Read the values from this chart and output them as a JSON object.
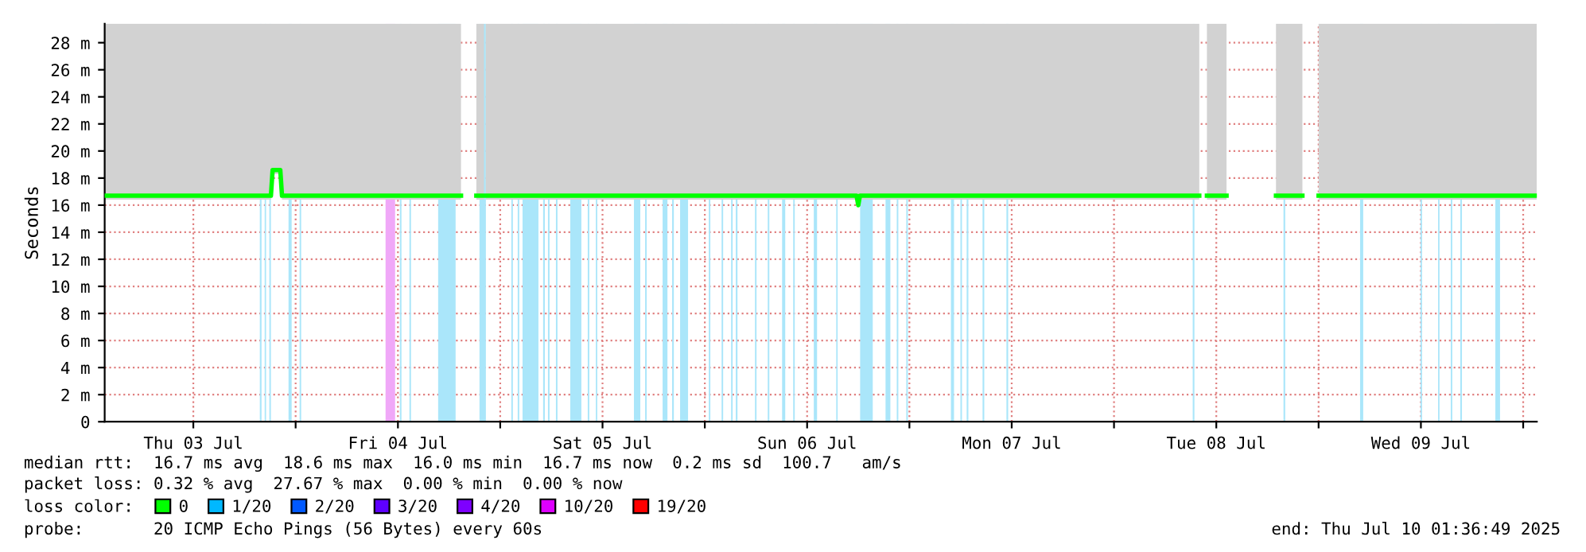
{
  "chart_data": {
    "type": "line",
    "ylabel": "Seconds",
    "xlim": [
      "2025-07-03T01:36",
      "2025-07-10T01:36"
    ],
    "xticks": [
      {
        "value": "2025-07-03T12:00",
        "label": "Thu 03 Jul"
      },
      {
        "value": "2025-07-04T00:00",
        "label": null
      },
      {
        "value": "2025-07-04T12:00",
        "label": "Fri 04 Jul"
      },
      {
        "value": "2025-07-05T00:00",
        "label": null
      },
      {
        "value": "2025-07-05T12:00",
        "label": "Sat 05 Jul"
      },
      {
        "value": "2025-07-06T00:00",
        "label": null
      },
      {
        "value": "2025-07-06T12:00",
        "label": "Sun 06 Jul"
      },
      {
        "value": "2025-07-07T00:00",
        "label": null
      },
      {
        "value": "2025-07-07T12:00",
        "label": "Mon 07 Jul"
      },
      {
        "value": "2025-07-08T00:00",
        "label": null
      },
      {
        "value": "2025-07-08T12:00",
        "label": "Tue 08 Jul"
      },
      {
        "value": "2025-07-09T00:00",
        "label": null
      },
      {
        "value": "2025-07-09T12:00",
        "label": "Wed 09 Jul"
      },
      {
        "value": "2025-07-10T00:00",
        "label": null
      }
    ],
    "ylim": [
      0,
      29.4
    ],
    "yticks": [
      0,
      {
        "value": 2,
        "label": "2 m"
      },
      {
        "value": 4,
        "label": "4 m"
      },
      {
        "value": 6,
        "label": "6 m"
      },
      {
        "value": 8,
        "label": "8 m"
      },
      {
        "value": 10,
        "label": "10 m"
      },
      {
        "value": 12,
        "label": "12 m"
      },
      {
        "value": 14,
        "label": "14 m"
      },
      {
        "value": 16,
        "label": "16 m"
      },
      {
        "value": 18,
        "label": "18 m"
      },
      {
        "value": 20,
        "label": "20 m"
      },
      {
        "value": 22,
        "label": "22 m"
      },
      {
        "value": 24,
        "label": "24 m"
      },
      {
        "value": 26,
        "label": "26 m"
      },
      {
        "value": 28,
        "label": "28 m"
      }
    ],
    "grid": true,
    "legend": "bottom",
    "legend_title": "loss color:",
    "series": [
      {
        "name": "0",
        "color": "#00ff00",
        "x": [
          "2025-07-03T01:36",
          "2025-07-03T21:06",
          "2025-07-03T21:18",
          "2025-07-03T22:12",
          "2025-07-03T22:24",
          "2025-07-04T19:24",
          "2025-07-04T19:30",
          "2025-07-04T21:12",
          "2025-07-04T22:06",
          "2025-07-04T22:10",
          "2025-07-04T22:18",
          "2025-07-06T17:48",
          "2025-07-06T18:00",
          "2025-07-06T18:12",
          "2025-07-08T10:00",
          "2025-07-08T10:24",
          "2025-07-08T10:54",
          "2025-07-08T13:12",
          "2025-07-08T16:00",
          "2025-07-08T19:00",
          "2025-07-08T22:06",
          "2025-07-08T22:24",
          "2025-07-09T00:00",
          "2025-07-10T01:36"
        ],
        "values": [
          16.7,
          16.7,
          18.6,
          18.6,
          16.7,
          16.7,
          null,
          16.7,
          16.7,
          null,
          16.7,
          16.7,
          16.0,
          16.7,
          16.7,
          null,
          16.7,
          16.7,
          null,
          16.7,
          16.7,
          null,
          16.7,
          16.7
        ],
        "lower": [
          16.4,
          16.4,
          18.3,
          18.3,
          16.4,
          16.4,
          null,
          16.4,
          16.4,
          null,
          16.4,
          16.4,
          16.4,
          16.4,
          16.4,
          null,
          16.4,
          16.4,
          null,
          16.4,
          16.4,
          null,
          16.4,
          16.4
        ],
        "upper": [
          29.4,
          29.4,
          29.4,
          29.4,
          29.4,
          29.4,
          null,
          29.4,
          29.4,
          null,
          29.4,
          29.4,
          29.4,
          29.4,
          29.4,
          null,
          29.4,
          29.4,
          null,
          29.4,
          29.4,
          null,
          29.4,
          29.4
        ]
      },
      {
        "name": "1/20",
        "color": "#00b8ff"
      },
      {
        "name": "2/20",
        "color": "#0059ff"
      },
      {
        "name": "3/20",
        "color": "#5e00ff"
      },
      {
        "name": "4/20",
        "color": "#7e00ff"
      },
      {
        "name": "10/20",
        "color": "#dd00ff"
      },
      {
        "name": "19/20",
        "color": "#ff0000"
      }
    ],
    "bands": [
      {
        "axis": "x",
        "from": "2025-07-03T19:48",
        "to": "2025-07-03T20:00",
        "color": "#aae6fa"
      },
      {
        "axis": "x",
        "from": "2025-07-03T20:22",
        "to": "2025-07-03T20:32",
        "color": "#aae6fa"
      },
      {
        "axis": "x",
        "from": "2025-07-03T20:55",
        "to": "2025-07-03T21:06",
        "color": "#aae6fa"
      },
      {
        "axis": "x",
        "from": "2025-07-03T23:10",
        "to": "2025-07-03T23:32",
        "color": "#aae6fa"
      },
      {
        "axis": "x",
        "from": "2025-07-04T00:28",
        "to": "2025-07-04T00:39",
        "color": "#aae6fa"
      },
      {
        "axis": "x",
        "from": "2025-07-04T10:33",
        "to": "2025-07-04T11:40",
        "color": "#f0a8f8"
      },
      {
        "axis": "x",
        "from": "2025-07-04T12:14",
        "to": "2025-07-04T12:25",
        "color": "#aae6fa"
      },
      {
        "axis": "x",
        "from": "2025-07-04T13:21",
        "to": "2025-07-04T13:32",
        "color": "#aae6fa"
      },
      {
        "axis": "x",
        "from": "2025-07-04T16:43",
        "to": "2025-07-04T18:46",
        "color": "#aae6fa"
      },
      {
        "axis": "x",
        "from": "2025-07-04T21:34",
        "to": "2025-07-04T22:19",
        "color": "#aae6fa"
      },
      {
        "axis": "x",
        "from": "2025-07-05T01:18",
        "to": "2025-07-05T01:29",
        "color": "#aae6fa"
      },
      {
        "axis": "x",
        "from": "2025-07-05T02:03",
        "to": "2025-07-05T02:14",
        "color": "#aae6fa"
      },
      {
        "axis": "x",
        "from": "2025-07-05T02:37",
        "to": "2025-07-05T04:29",
        "color": "#aae6fa"
      },
      {
        "axis": "x",
        "from": "2025-07-05T05:02",
        "to": "2025-07-05T05:14",
        "color": "#aae6fa"
      },
      {
        "axis": "x",
        "from": "2025-07-05T05:36",
        "to": "2025-07-05T05:47",
        "color": "#aae6fa"
      },
      {
        "axis": "x",
        "from": "2025-07-05T06:32",
        "to": "2025-07-05T06:43",
        "color": "#aae6fa"
      },
      {
        "axis": "x",
        "from": "2025-07-05T08:13",
        "to": "2025-07-05T09:31",
        "color": "#aae6fa"
      },
      {
        "axis": "x",
        "from": "2025-07-05T10:16",
        "to": "2025-07-05T10:27",
        "color": "#aae6fa"
      },
      {
        "axis": "x",
        "from": "2025-07-05T11:13",
        "to": "2025-07-05T11:23",
        "color": "#aae6fa"
      },
      {
        "axis": "x",
        "from": "2025-07-05T15:41",
        "to": "2025-07-05T16:26",
        "color": "#aae6fa"
      },
      {
        "axis": "x",
        "from": "2025-07-05T17:00",
        "to": "2025-07-05T17:11",
        "color": "#aae6fa"
      },
      {
        "axis": "x",
        "from": "2025-07-05T19:03",
        "to": "2025-07-05T19:37",
        "color": "#aae6fa"
      },
      {
        "axis": "x",
        "from": "2025-07-05T20:10",
        "to": "2025-07-05T20:22",
        "color": "#aae6fa"
      },
      {
        "axis": "x",
        "from": "2025-07-05T21:06",
        "to": "2025-07-05T22:02",
        "color": "#aae6fa"
      },
      {
        "axis": "x",
        "from": "2025-07-06T00:28",
        "to": "2025-07-06T00:39",
        "color": "#aae6fa"
      },
      {
        "axis": "x",
        "from": "2025-07-06T01:58",
        "to": "2025-07-06T02:09",
        "color": "#aae6fa"
      },
      {
        "axis": "x",
        "from": "2025-07-06T03:05",
        "to": "2025-07-06T03:16",
        "color": "#aae6fa"
      },
      {
        "axis": "x",
        "from": "2025-07-06T03:38",
        "to": "2025-07-06T03:50",
        "color": "#aae6fa"
      },
      {
        "axis": "x",
        "from": "2025-07-06T05:53",
        "to": "2025-07-06T06:04",
        "color": "#aae6fa"
      },
      {
        "axis": "x",
        "from": "2025-07-06T07:23",
        "to": "2025-07-06T07:34",
        "color": "#aae6fa"
      },
      {
        "axis": "x",
        "from": "2025-07-06T09:04",
        "to": "2025-07-06T09:26",
        "color": "#aae6fa"
      },
      {
        "axis": "x",
        "from": "2025-07-06T10:22",
        "to": "2025-07-06T10:33",
        "color": "#aae6fa"
      },
      {
        "axis": "x",
        "from": "2025-07-06T12:47",
        "to": "2025-07-06T13:10",
        "color": "#aae6fa"
      },
      {
        "axis": "x",
        "from": "2025-07-06T15:25",
        "to": "2025-07-06T15:35",
        "color": "#aae6fa"
      },
      {
        "axis": "x",
        "from": "2025-07-06T18:13",
        "to": "2025-07-06T19:42",
        "color": "#aae6fa"
      },
      {
        "axis": "x",
        "from": "2025-07-06T21:12",
        "to": "2025-07-06T21:46",
        "color": "#aae6fa"
      },
      {
        "axis": "x",
        "from": "2025-07-06T22:31",
        "to": "2025-07-06T22:42",
        "color": "#aae6fa"
      },
      {
        "axis": "x",
        "from": "2025-07-06T23:38",
        "to": "2025-07-06T23:49",
        "color": "#aae6fa"
      },
      {
        "axis": "x",
        "from": "2025-07-07T04:52",
        "to": "2025-07-07T05:14",
        "color": "#aae6fa"
      },
      {
        "axis": "x",
        "from": "2025-07-07T05:59",
        "to": "2025-07-07T06:10",
        "color": "#aae6fa"
      },
      {
        "axis": "x",
        "from": "2025-07-07T06:43",
        "to": "2025-07-07T06:55",
        "color": "#aae6fa"
      },
      {
        "axis": "x",
        "from": "2025-07-07T08:35",
        "to": "2025-07-07T08:47",
        "color": "#aae6fa"
      },
      {
        "axis": "x",
        "from": "2025-07-07T11:23",
        "to": "2025-07-07T11:35",
        "color": "#aae6fa"
      },
      {
        "axis": "x",
        "from": "2025-07-08T09:14",
        "to": "2025-07-08T09:26",
        "color": "#aae6fa"
      },
      {
        "axis": "x",
        "from": "2025-07-08T19:53",
        "to": "2025-07-08T20:05",
        "color": "#aae6fa"
      },
      {
        "axis": "x",
        "from": "2025-07-09T04:52",
        "to": "2025-07-09T05:14",
        "color": "#aae6fa"
      },
      {
        "axis": "x",
        "from": "2025-07-09T11:57",
        "to": "2025-07-09T12:08",
        "color": "#aae6fa"
      },
      {
        "axis": "x",
        "from": "2025-07-09T14:01",
        "to": "2025-07-09T14:11",
        "color": "#aae6fa"
      },
      {
        "axis": "x",
        "from": "2025-07-09T15:30",
        "to": "2025-07-09T15:41",
        "color": "#aae6fa"
      },
      {
        "axis": "x",
        "from": "2025-07-09T16:37",
        "to": "2025-07-09T16:49",
        "color": "#aae6fa"
      },
      {
        "axis": "x",
        "from": "2025-07-09T20:44",
        "to": "2025-07-09T21:17",
        "color": "#aae6fa"
      }
    ],
    "annotations": [
      "median rtt:  16.7 ms avg  18.6 ms max  16.0 ms min  16.7 ms now  0.2 ms sd  100.7   am/s",
      "packet loss: 0.32 % avg  27.67 % max  0.00 % min  0.00 % now",
      "probe:       20 ICMP Echo Pings (56 Bytes) every 60s",
      "end: Thu Jul 10 01:36:49 2025"
    ]
  }
}
